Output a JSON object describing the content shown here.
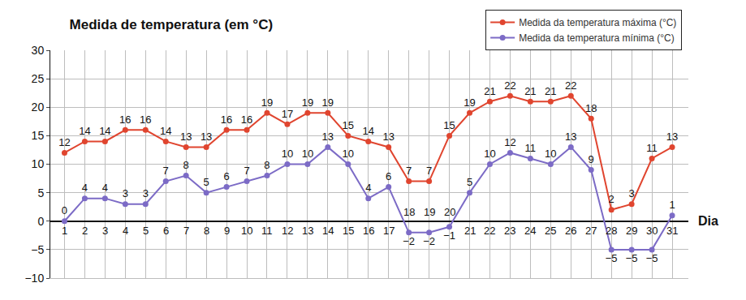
{
  "chart_data": {
    "type": "line",
    "title": "Medida de temperatura (em °C)",
    "x_label": "Dia",
    "x": [
      1,
      2,
      3,
      4,
      5,
      6,
      7,
      8,
      9,
      10,
      11,
      12,
      13,
      14,
      15,
      16,
      17,
      18,
      19,
      20,
      21,
      22,
      23,
      24,
      25,
      26,
      27,
      28,
      29,
      30,
      31
    ],
    "series": [
      {
        "name": "Medida da temperatura máxima (°C)",
        "color": "#e0452f",
        "values": [
          12,
          14,
          14,
          16,
          16,
          14,
          13,
          13,
          16,
          16,
          19,
          17,
          19,
          19,
          15,
          14,
          13,
          7,
          7,
          15,
          19,
          21,
          22,
          21,
          21,
          22,
          18,
          2,
          3,
          11,
          13
        ]
      },
      {
        "name": "Medida da temperatura mínima (°C)",
        "color": "#7c6bc6",
        "values": [
          0,
          4,
          4,
          3,
          3,
          7,
          8,
          5,
          6,
          7,
          8,
          10,
          10,
          13,
          10,
          4,
          6,
          -2,
          -2,
          -1,
          5,
          10,
          12,
          11,
          10,
          13,
          9,
          -5,
          -5,
          -5,
          1
        ]
      }
    ],
    "xlim": [
      0.3,
      31.8
    ],
    "xticks": [
      1,
      2,
      3,
      4,
      5,
      6,
      7,
      8,
      9,
      10,
      11,
      12,
      13,
      14,
      15,
      16,
      17,
      18,
      19,
      20,
      21,
      22,
      23,
      24,
      25,
      26,
      27,
      28,
      29,
      30,
      31
    ],
    "ylim": [
      -10,
      30
    ],
    "yticks": [
      -10,
      -5,
      0,
      5,
      10,
      15,
      20,
      25,
      30
    ],
    "grid": true,
    "legend": "top right",
    "data_labels": true,
    "marker": "circle"
  }
}
